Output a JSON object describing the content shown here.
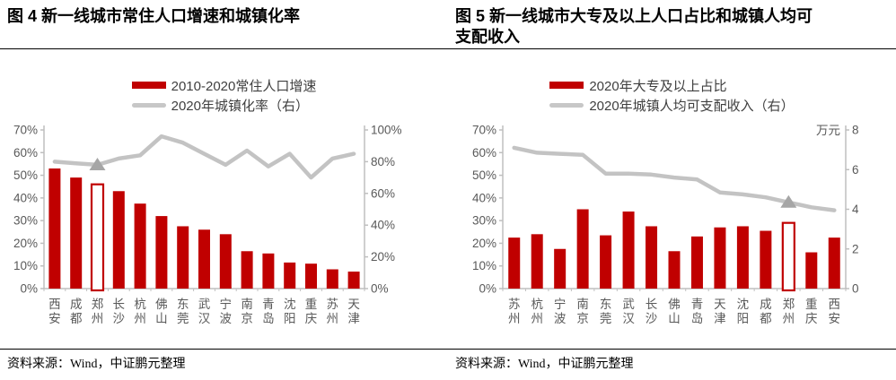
{
  "colors": {
    "bar": "#c00000",
    "bar_highlight_fill": "#ffffff",
    "line": "#c3c3c3",
    "marker": "#a6a6a6",
    "axis": "#bfbfbf",
    "tick_label": "#595959",
    "title": "#000000"
  },
  "charts": [
    {
      "title": "图 4  新一线城市常住人口增速和城镇化率",
      "legend": [
        {
          "type": "bar",
          "label": "2010-2020常住人口增速"
        },
        {
          "type": "line",
          "label": "2020年城镇化率（右）"
        }
      ],
      "source": "资料来源：Wind，中证鹏元整理",
      "chart_data": {
        "type": "bar+line",
        "categories": [
          "西安",
          "成都",
          "郑州",
          "长沙",
          "杭州",
          "佛山",
          "东莞",
          "武汉",
          "宁波",
          "南京",
          "青岛",
          "沈阳",
          "重庆",
          "苏州",
          "天津"
        ],
        "series": [
          {
            "name": "2010-2020常住人口增速",
            "type": "bar",
            "axis": "left",
            "values": [
              53,
              49,
              46,
              43,
              37.5,
              32,
              27.5,
              26,
              24,
              16.5,
              15.5,
              11.5,
              11,
              8.5,
              7.5
            ],
            "highlight_index": 2,
            "highlight_category": "郑州"
          },
          {
            "name": "2020年城镇化率（右）",
            "type": "line",
            "axis": "right",
            "values": [
              80,
              79,
              78,
              82,
              84,
              96,
              92,
              85,
              78,
              87,
              77,
              85,
              70,
              82,
              85
            ],
            "marker_index": 2,
            "marker_category": "郑州"
          }
        ],
        "left_axis": {
          "min": 0,
          "max": 70,
          "step": 10,
          "format": "percent"
        },
        "right_axis": {
          "min": 0,
          "max": 100,
          "step": 20,
          "format": "percent"
        },
        "grid": false,
        "legend_position": "top"
      }
    },
    {
      "title": "图 5  新一线城市大专及以上人口占比和城镇人均可支配收入",
      "legend": [
        {
          "type": "bar",
          "label": "2020年大专及以上占比"
        },
        {
          "type": "line",
          "label": "2020年城镇人均可支配收入（右）"
        }
      ],
      "source": "资料来源：Wind，中证鹏元整理",
      "chart_data": {
        "type": "bar+line",
        "categories": [
          "苏州",
          "杭州",
          "宁波",
          "南京",
          "东莞",
          "武汉",
          "长沙",
          "佛山",
          "青岛",
          "天津",
          "沈阳",
          "成都",
          "郑州",
          "重庆",
          "西安"
        ],
        "series": [
          {
            "name": "2020年大专及以上占比",
            "type": "bar",
            "axis": "left",
            "values": [
              22.5,
              24,
              17.5,
              35,
              23.5,
              34,
              27.5,
              16.5,
              23,
              27,
              27.5,
              25.5,
              29,
              16,
              22.5
            ],
            "highlight_index": 12,
            "highlight_category": "郑州"
          },
          {
            "name": "2020年城镇人均可支配收入（右）",
            "type": "line",
            "axis": "right",
            "values": [
              7.1,
              6.85,
              6.8,
              6.75,
              5.8,
              5.8,
              5.75,
              5.6,
              5.5,
              4.85,
              4.75,
              4.6,
              4.35,
              4.1,
              3.95
            ],
            "marker_index": 12,
            "marker_category": "郑州"
          }
        ],
        "left_axis": {
          "min": 0,
          "max": 70,
          "step": 10,
          "format": "percent"
        },
        "right_axis": {
          "min": 0,
          "max": 8,
          "step": 2,
          "format": "number",
          "unit": "万元"
        },
        "grid": false,
        "legend_position": "top"
      }
    }
  ]
}
